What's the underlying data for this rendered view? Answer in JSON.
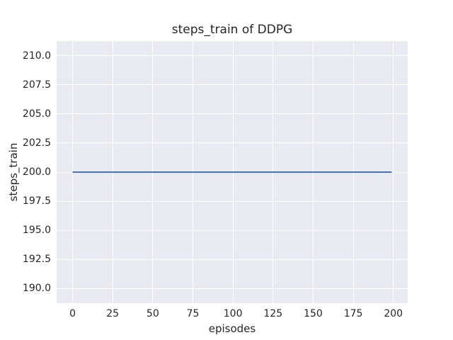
{
  "figure": {
    "title": "steps_train of DDPG",
    "xlabel": "episodes",
    "ylabel": "steps_train"
  },
  "chart_data": {
    "type": "line",
    "title": "steps_train of DDPG",
    "xlabel": "episodes",
    "ylabel": "steps_train",
    "series": [
      {
        "name": "steps_train",
        "color": "#4C72B0",
        "line_width": 2,
        "constant_value": 200,
        "note": "flat line: steps_train = 200 for every episode 0..199",
        "x": [
          0,
          199
        ],
        "y": [
          200,
          200
        ]
      }
    ],
    "xlim": [
      -9.95,
      208.95
    ],
    "ylim": [
      188.75,
      211.25
    ],
    "xticks": [
      0,
      25,
      50,
      75,
      100,
      125,
      150,
      175,
      200
    ],
    "xtick_labels": [
      "0",
      "25",
      "50",
      "75",
      "100",
      "125",
      "150",
      "175",
      "200"
    ],
    "yticks": [
      190.0,
      192.5,
      195.0,
      197.5,
      200.0,
      202.5,
      205.0,
      207.5,
      210.0
    ],
    "ytick_labels": [
      "190.0",
      "192.5",
      "195.0",
      "197.5",
      "200.0",
      "202.5",
      "205.0",
      "207.5",
      "210.0"
    ],
    "grid": true,
    "legend": false,
    "style": {
      "figure_background": "#FFFFFF",
      "axes_background": "#EAEAF2",
      "grid_color": "#FFFFFF",
      "text_color": "#262626"
    }
  }
}
